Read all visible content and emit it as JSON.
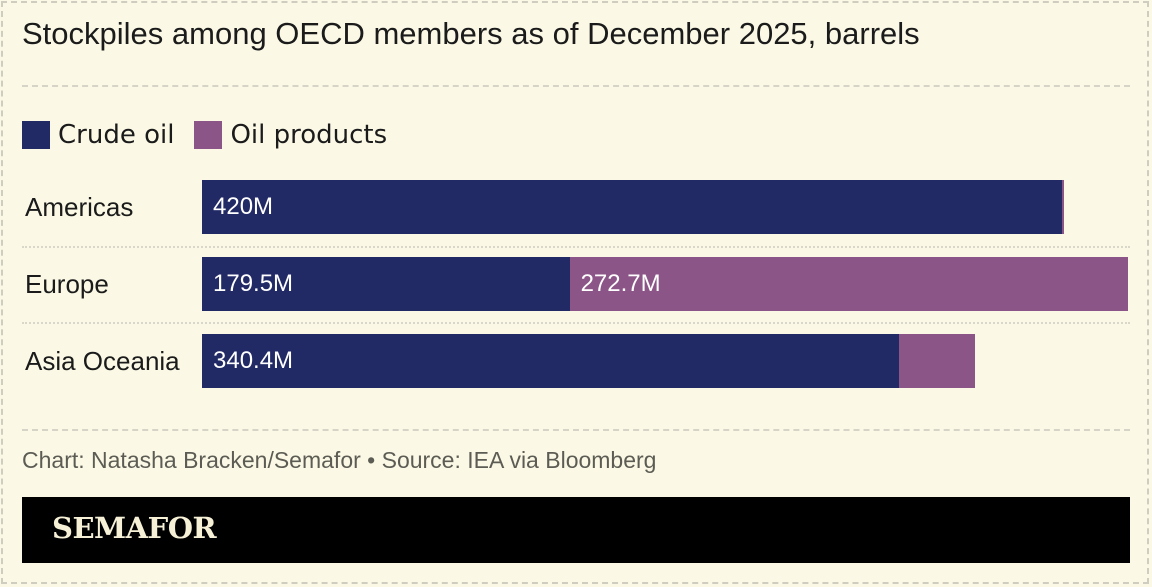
{
  "chart_data": {
    "type": "bar",
    "orientation": "horizontal",
    "stacked": true,
    "title": "Stockpiles among OECD members as of December 2025, barrels",
    "categories": [
      "Americas",
      "Europe",
      "Asia Oceania"
    ],
    "series": [
      {
        "name": "Crude oil",
        "color": "#222a66",
        "values": [
          420,
          179.5,
          340.4
        ],
        "labels": [
          "420M",
          "179.5M",
          "340.4M"
        ]
      },
      {
        "name": "Oil products",
        "color": "#8c5587",
        "values": [
          1,
          272.7,
          37
        ],
        "labels": [
          "",
          "272.7M",
          ""
        ]
      }
    ],
    "xlim": [
      0,
      452.2
    ],
    "units": "million barrels",
    "legend": "top-left",
    "grid": false
  },
  "footer": {
    "source": "Chart: Natasha Bracken/Semafor • Source: IEA via Bloomberg",
    "brand": "SEMAFOR"
  }
}
